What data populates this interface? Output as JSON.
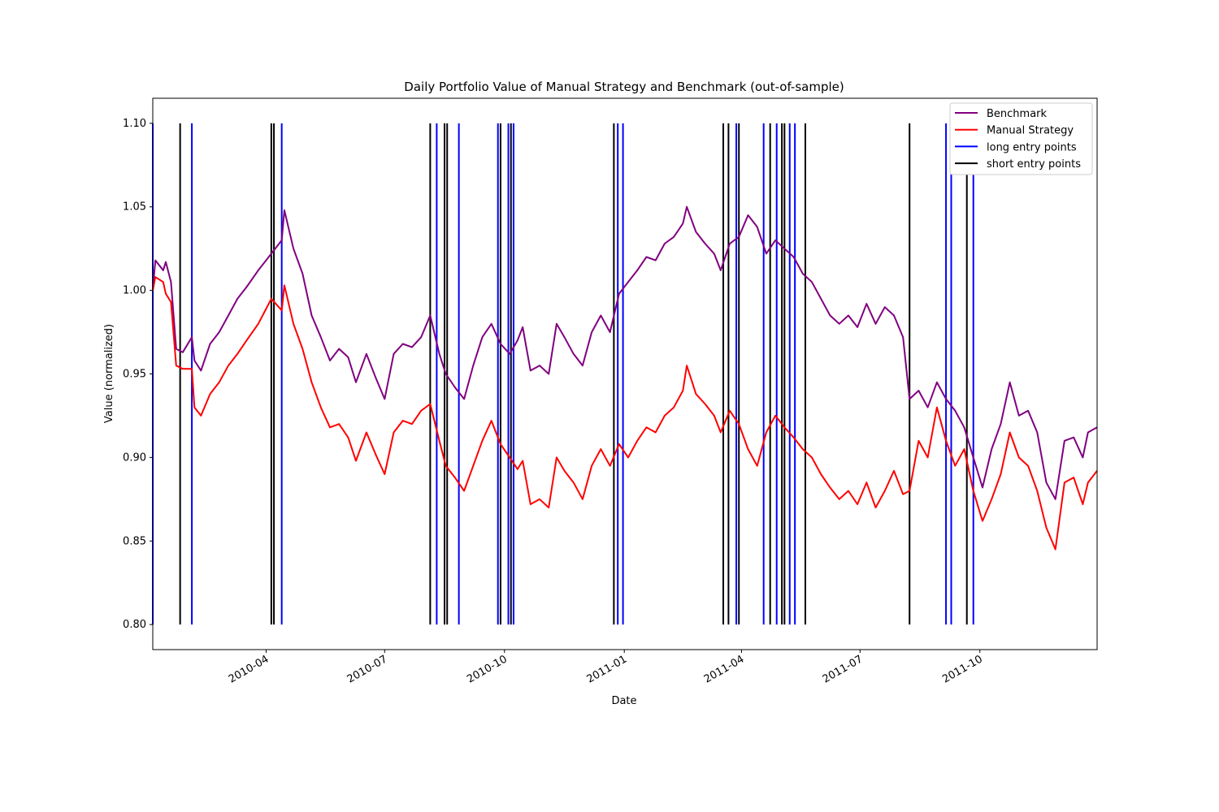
{
  "chart_data": {
    "type": "line",
    "title": "Daily Portfolio Value of Manual Strategy and Benchmark (out-of-sample)",
    "xlabel": "Date",
    "ylabel": "Value (normalized)",
    "x_range": [
      "2010-01-04",
      "2011-12-30"
    ],
    "ylim": [
      0.785,
      1.115
    ],
    "y_ticks": [
      0.8,
      0.85,
      0.9,
      0.95,
      1.0,
      1.05,
      1.1
    ],
    "y_tick_labels": [
      "0.80",
      "0.85",
      "0.90",
      "0.95",
      "1.00",
      "1.05",
      "1.10"
    ],
    "x_ticks": [
      "2010-04-01",
      "2010-07-01",
      "2010-10-01",
      "2011-01-01",
      "2011-04-01",
      "2011-07-01",
      "2011-10-01"
    ],
    "x_tick_labels": [
      "2010-04",
      "2010-07",
      "2010-10",
      "2011-01",
      "2011-04",
      "2011-07",
      "2011-10"
    ],
    "legend_position": "top-right",
    "grid": false,
    "series": [
      {
        "name": "Benchmark",
        "color": "#800080",
        "points": [
          [
            "2010-01-04",
            1.0
          ],
          [
            "2010-01-06",
            1.018
          ],
          [
            "2010-01-12",
            1.012
          ],
          [
            "2010-01-14",
            1.017
          ],
          [
            "2010-01-18",
            1.005
          ],
          [
            "2010-01-22",
            0.965
          ],
          [
            "2010-01-27",
            0.963
          ],
          [
            "2010-02-03",
            0.972
          ],
          [
            "2010-02-05",
            0.958
          ],
          [
            "2010-02-10",
            0.952
          ],
          [
            "2010-02-17",
            0.968
          ],
          [
            "2010-02-24",
            0.975
          ],
          [
            "2010-03-03",
            0.985
          ],
          [
            "2010-03-10",
            0.995
          ],
          [
            "2010-03-17",
            1.002
          ],
          [
            "2010-03-26",
            1.012
          ],
          [
            "2010-04-05",
            1.022
          ],
          [
            "2010-04-13",
            1.03
          ],
          [
            "2010-04-15",
            1.048
          ],
          [
            "2010-04-22",
            1.025
          ],
          [
            "2010-04-29",
            1.01
          ],
          [
            "2010-05-06",
            0.985
          ],
          [
            "2010-05-13",
            0.972
          ],
          [
            "2010-05-20",
            0.958
          ],
          [
            "2010-05-27",
            0.965
          ],
          [
            "2010-06-03",
            0.96
          ],
          [
            "2010-06-09",
            0.945
          ],
          [
            "2010-06-17",
            0.962
          ],
          [
            "2010-06-24",
            0.948
          ],
          [
            "2010-07-01",
            0.935
          ],
          [
            "2010-07-08",
            0.962
          ],
          [
            "2010-07-15",
            0.968
          ],
          [
            "2010-07-22",
            0.966
          ],
          [
            "2010-07-29",
            0.972
          ],
          [
            "2010-08-05",
            0.985
          ],
          [
            "2010-08-12",
            0.962
          ],
          [
            "2010-08-17",
            0.95
          ],
          [
            "2010-08-24",
            0.942
          ],
          [
            "2010-08-31",
            0.935
          ],
          [
            "2010-09-07",
            0.955
          ],
          [
            "2010-09-14",
            0.972
          ],
          [
            "2010-09-21",
            0.98
          ],
          [
            "2010-09-28",
            0.968
          ],
          [
            "2010-10-05",
            0.962
          ],
          [
            "2010-10-11",
            0.97
          ],
          [
            "2010-10-15",
            0.978
          ],
          [
            "2010-10-21",
            0.952
          ],
          [
            "2010-10-28",
            0.955
          ],
          [
            "2010-11-04",
            0.95
          ],
          [
            "2010-11-10",
            0.98
          ],
          [
            "2010-11-16",
            0.972
          ],
          [
            "2010-11-23",
            0.962
          ],
          [
            "2010-11-30",
            0.955
          ],
          [
            "2010-12-07",
            0.975
          ],
          [
            "2010-12-14",
            0.985
          ],
          [
            "2010-12-21",
            0.975
          ],
          [
            "2010-12-28",
            0.998
          ],
          [
            "2011-01-04",
            1.005
          ],
          [
            "2011-01-11",
            1.012
          ],
          [
            "2011-01-18",
            1.02
          ],
          [
            "2011-01-25",
            1.018
          ],
          [
            "2011-02-01",
            1.028
          ],
          [
            "2011-02-08",
            1.032
          ],
          [
            "2011-02-15",
            1.04
          ],
          [
            "2011-02-18",
            1.05
          ],
          [
            "2011-02-25",
            1.035
          ],
          [
            "2011-03-04",
            1.028
          ],
          [
            "2011-03-11",
            1.022
          ],
          [
            "2011-03-16",
            1.012
          ],
          [
            "2011-03-23",
            1.028
          ],
          [
            "2011-03-30",
            1.032
          ],
          [
            "2011-04-06",
            1.045
          ],
          [
            "2011-04-13",
            1.038
          ],
          [
            "2011-04-20",
            1.022
          ],
          [
            "2011-04-27",
            1.03
          ],
          [
            "2011-05-04",
            1.025
          ],
          [
            "2011-05-11",
            1.02
          ],
          [
            "2011-05-18",
            1.01
          ],
          [
            "2011-05-25",
            1.005
          ],
          [
            "2011-06-01",
            0.995
          ],
          [
            "2011-06-08",
            0.985
          ],
          [
            "2011-06-15",
            0.98
          ],
          [
            "2011-06-22",
            0.985
          ],
          [
            "2011-06-29",
            0.978
          ],
          [
            "2011-07-06",
            0.992
          ],
          [
            "2011-07-13",
            0.98
          ],
          [
            "2011-07-20",
            0.99
          ],
          [
            "2011-07-27",
            0.985
          ],
          [
            "2011-08-03",
            0.972
          ],
          [
            "2011-08-08",
            0.935
          ],
          [
            "2011-08-15",
            0.94
          ],
          [
            "2011-08-22",
            0.93
          ],
          [
            "2011-08-29",
            0.945
          ],
          [
            "2011-09-05",
            0.935
          ],
          [
            "2011-09-12",
            0.928
          ],
          [
            "2011-09-19",
            0.918
          ],
          [
            "2011-09-26",
            0.9
          ],
          [
            "2011-10-03",
            0.882
          ],
          [
            "2011-10-10",
            0.905
          ],
          [
            "2011-10-17",
            0.92
          ],
          [
            "2011-10-24",
            0.945
          ],
          [
            "2011-10-31",
            0.925
          ],
          [
            "2011-11-07",
            0.928
          ],
          [
            "2011-11-14",
            0.915
          ],
          [
            "2011-11-21",
            0.885
          ],
          [
            "2011-11-28",
            0.875
          ],
          [
            "2011-12-05",
            0.91
          ],
          [
            "2011-12-12",
            0.912
          ],
          [
            "2011-12-19",
            0.9
          ],
          [
            "2011-12-23",
            0.915
          ],
          [
            "2011-12-30",
            0.918
          ]
        ]
      },
      {
        "name": "Manual Strategy",
        "color": "#ff0000",
        "points": [
          [
            "2010-01-04",
            1.0
          ],
          [
            "2010-01-06",
            1.008
          ],
          [
            "2010-01-12",
            1.005
          ],
          [
            "2010-01-14",
            0.998
          ],
          [
            "2010-01-18",
            0.993
          ],
          [
            "2010-01-22",
            0.955
          ],
          [
            "2010-01-27",
            0.953
          ],
          [
            "2010-02-03",
            0.953
          ],
          [
            "2010-02-05",
            0.93
          ],
          [
            "2010-02-10",
            0.925
          ],
          [
            "2010-02-17",
            0.938
          ],
          [
            "2010-02-24",
            0.945
          ],
          [
            "2010-03-03",
            0.955
          ],
          [
            "2010-03-10",
            0.962
          ],
          [
            "2010-03-17",
            0.97
          ],
          [
            "2010-03-26",
            0.98
          ],
          [
            "2010-04-05",
            0.995
          ],
          [
            "2010-04-13",
            0.988
          ],
          [
            "2010-04-15",
            1.003
          ],
          [
            "2010-04-22",
            0.98
          ],
          [
            "2010-04-29",
            0.965
          ],
          [
            "2010-05-06",
            0.945
          ],
          [
            "2010-05-13",
            0.93
          ],
          [
            "2010-05-20",
            0.918
          ],
          [
            "2010-05-27",
            0.92
          ],
          [
            "2010-06-03",
            0.912
          ],
          [
            "2010-06-09",
            0.898
          ],
          [
            "2010-06-17",
            0.915
          ],
          [
            "2010-06-24",
            0.902
          ],
          [
            "2010-07-01",
            0.89
          ],
          [
            "2010-07-08",
            0.915
          ],
          [
            "2010-07-15",
            0.922
          ],
          [
            "2010-07-22",
            0.92
          ],
          [
            "2010-07-29",
            0.928
          ],
          [
            "2010-08-05",
            0.932
          ],
          [
            "2010-08-12",
            0.91
          ],
          [
            "2010-08-17",
            0.895
          ],
          [
            "2010-08-24",
            0.888
          ],
          [
            "2010-08-31",
            0.88
          ],
          [
            "2010-09-07",
            0.895
          ],
          [
            "2010-09-14",
            0.91
          ],
          [
            "2010-09-21",
            0.922
          ],
          [
            "2010-09-28",
            0.908
          ],
          [
            "2010-10-05",
            0.9
          ],
          [
            "2010-10-11",
            0.893
          ],
          [
            "2010-10-15",
            0.898
          ],
          [
            "2010-10-21",
            0.872
          ],
          [
            "2010-10-28",
            0.875
          ],
          [
            "2010-11-04",
            0.87
          ],
          [
            "2010-11-10",
            0.9
          ],
          [
            "2010-11-16",
            0.892
          ],
          [
            "2010-11-23",
            0.885
          ],
          [
            "2010-11-30",
            0.875
          ],
          [
            "2010-12-07",
            0.895
          ],
          [
            "2010-12-14",
            0.905
          ],
          [
            "2010-12-21",
            0.895
          ],
          [
            "2010-12-28",
            0.908
          ],
          [
            "2011-01-04",
            0.9
          ],
          [
            "2011-01-11",
            0.91
          ],
          [
            "2011-01-18",
            0.918
          ],
          [
            "2011-01-25",
            0.915
          ],
          [
            "2011-02-01",
            0.925
          ],
          [
            "2011-02-08",
            0.93
          ],
          [
            "2011-02-15",
            0.94
          ],
          [
            "2011-02-18",
            0.955
          ],
          [
            "2011-02-25",
            0.938
          ],
          [
            "2011-03-04",
            0.932
          ],
          [
            "2011-03-11",
            0.925
          ],
          [
            "2011-03-16",
            0.915
          ],
          [
            "2011-03-23",
            0.928
          ],
          [
            "2011-03-30",
            0.92
          ],
          [
            "2011-04-06",
            0.905
          ],
          [
            "2011-04-13",
            0.895
          ],
          [
            "2011-04-20",
            0.915
          ],
          [
            "2011-04-27",
            0.925
          ],
          [
            "2011-05-04",
            0.918
          ],
          [
            "2011-05-11",
            0.912
          ],
          [
            "2011-05-18",
            0.905
          ],
          [
            "2011-05-25",
            0.9
          ],
          [
            "2011-06-01",
            0.89
          ],
          [
            "2011-06-08",
            0.882
          ],
          [
            "2011-06-15",
            0.875
          ],
          [
            "2011-06-22",
            0.88
          ],
          [
            "2011-06-29",
            0.872
          ],
          [
            "2011-07-06",
            0.885
          ],
          [
            "2011-07-13",
            0.87
          ],
          [
            "2011-07-20",
            0.88
          ],
          [
            "2011-07-27",
            0.892
          ],
          [
            "2011-08-03",
            0.878
          ],
          [
            "2011-08-08",
            0.88
          ],
          [
            "2011-08-15",
            0.91
          ],
          [
            "2011-08-22",
            0.9
          ],
          [
            "2011-08-29",
            0.93
          ],
          [
            "2011-09-05",
            0.91
          ],
          [
            "2011-09-12",
            0.895
          ],
          [
            "2011-09-19",
            0.905
          ],
          [
            "2011-09-26",
            0.88
          ],
          [
            "2011-10-03",
            0.862
          ],
          [
            "2011-10-10",
            0.875
          ],
          [
            "2011-10-17",
            0.89
          ],
          [
            "2011-10-24",
            0.915
          ],
          [
            "2011-10-31",
            0.9
          ],
          [
            "2011-11-07",
            0.895
          ],
          [
            "2011-11-14",
            0.88
          ],
          [
            "2011-11-21",
            0.858
          ],
          [
            "2011-11-28",
            0.845
          ],
          [
            "2011-12-05",
            0.885
          ],
          [
            "2011-12-12",
            0.888
          ],
          [
            "2011-12-19",
            0.872
          ],
          [
            "2011-12-23",
            0.885
          ],
          [
            "2011-12-30",
            0.892
          ]
        ]
      }
    ],
    "vertical_markers": {
      "y_range": [
        0.8,
        1.1
      ],
      "long_entry_points": {
        "name": "long entry points",
        "color": "#0000ff",
        "dates": [
          "2010-01-04",
          "2010-02-03",
          "2010-04-13",
          "2010-08-10",
          "2010-08-27",
          "2010-09-26",
          "2010-10-04",
          "2010-10-08",
          "2010-12-27",
          "2010-12-31",
          "2011-03-28",
          "2011-04-18",
          "2011-04-28",
          "2011-05-08",
          "2011-05-12",
          "2011-09-05",
          "2011-09-09",
          "2011-09-26"
        ]
      },
      "short_entry_points": {
        "name": "short entry points",
        "color": "#000000",
        "dates": [
          "2010-01-25",
          "2010-04-05",
          "2010-04-07",
          "2010-08-05",
          "2010-08-16",
          "2010-08-18",
          "2010-09-28",
          "2010-10-06",
          "2010-12-24",
          "2011-03-18",
          "2011-03-22",
          "2011-03-30",
          "2011-04-23",
          "2011-05-02",
          "2011-05-04",
          "2011-05-20",
          "2011-08-08",
          "2011-09-21"
        ]
      }
    }
  }
}
